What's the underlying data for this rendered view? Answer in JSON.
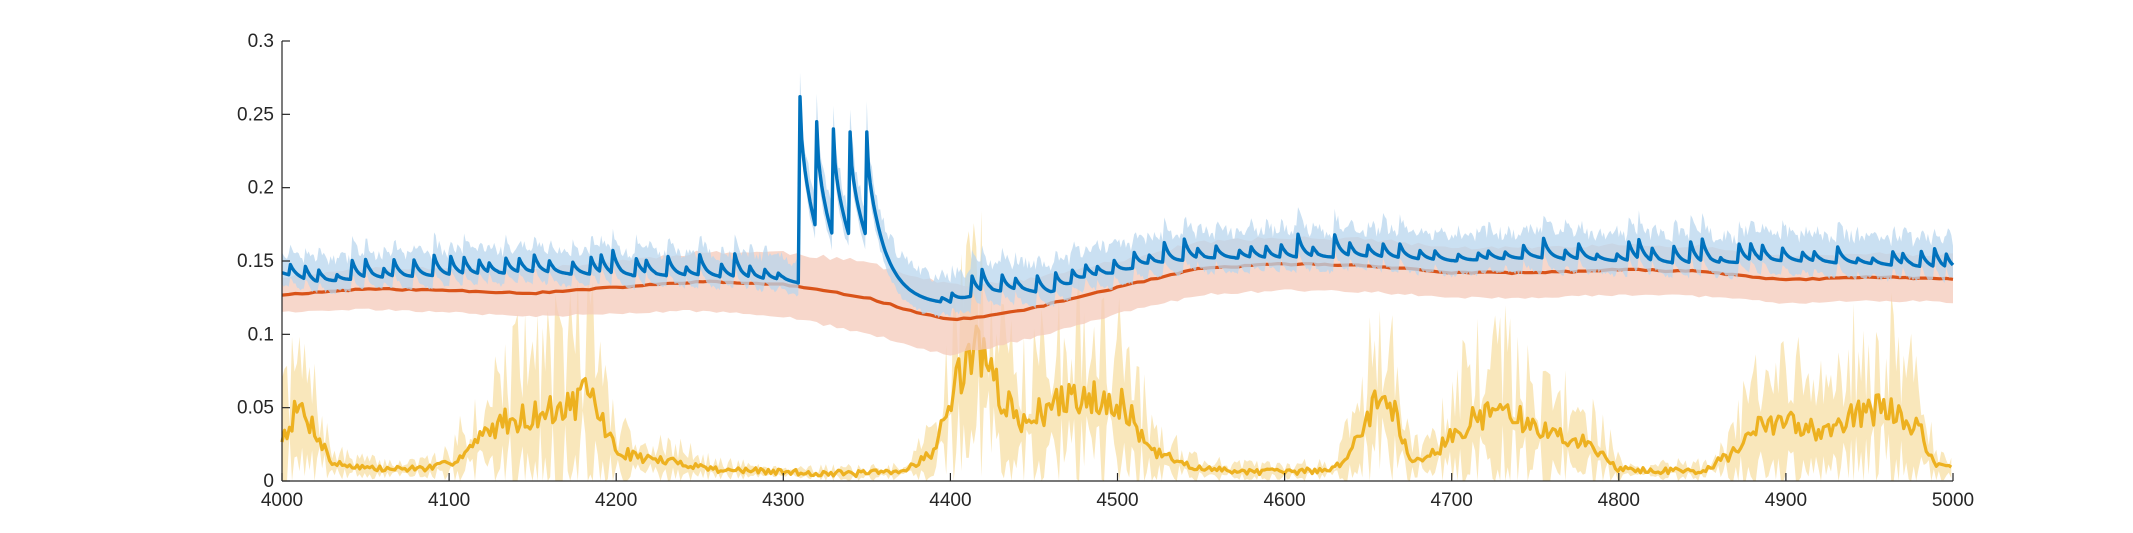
{
  "chart_data": {
    "type": "line",
    "title": "",
    "xlabel": "",
    "ylabel": "",
    "xlim": [
      4000,
      5000
    ],
    "ylim": [
      0,
      0.3
    ],
    "grid": false,
    "legend": "none",
    "xticks": [
      4000,
      4100,
      4200,
      4300,
      4400,
      4500,
      4600,
      4700,
      4800,
      4900,
      5000
    ],
    "xtick_labels": [
      "4000",
      "4100",
      "4200",
      "4300",
      "4400",
      "4500",
      "4600",
      "4700",
      "4800",
      "4900",
      "5000"
    ],
    "yticks": [
      0,
      0.05,
      0.1,
      0.15,
      0.2,
      0.25,
      0.3
    ],
    "ytick_labels": [
      "0",
      "0.05",
      "0.1",
      "0.15",
      "0.2",
      "0.25",
      "0.3"
    ],
    "series": [
      {
        "color": "#EDB120",
        "band_color": "#F7DFA4",
        "style": "mean-with-shaded-band",
        "x": [
          4000,
          4010,
          4020,
          4030,
          4060,
          4090,
          4100,
          4110,
          4130,
          4150,
          4170,
          4185,
          4190,
          4200,
          4220,
          4240,
          4260,
          4300,
          4340,
          4370,
          4390,
          4405,
          4415,
          4420,
          4430,
          4440,
          4460,
          4480,
          4500,
          4510,
          4520,
          4550,
          4600,
          4630,
          4645,
          4655,
          4665,
          4675,
          4690,
          4710,
          4730,
          4750,
          4770,
          4790,
          4800,
          4820,
          4850,
          4870,
          4880,
          4900,
          4920,
          4940,
          4960,
          4975,
          4980,
          4990,
          5000
        ],
        "mean": [
          0.03,
          0.05,
          0.035,
          0.012,
          0.008,
          0.009,
          0.012,
          0.02,
          0.04,
          0.045,
          0.05,
          0.06,
          0.045,
          0.02,
          0.015,
          0.012,
          0.008,
          0.006,
          0.005,
          0.006,
          0.02,
          0.07,
          0.1,
          0.08,
          0.06,
          0.04,
          0.05,
          0.06,
          0.055,
          0.04,
          0.02,
          0.008,
          0.006,
          0.008,
          0.03,
          0.06,
          0.05,
          0.015,
          0.02,
          0.04,
          0.05,
          0.035,
          0.03,
          0.02,
          0.008,
          0.007,
          0.007,
          0.02,
          0.035,
          0.04,
          0.035,
          0.045,
          0.05,
          0.04,
          0.035,
          0.01,
          0.008
        ],
        "band_halfwidth": [
          0.02,
          0.03,
          0.02,
          0.006,
          0.004,
          0.004,
          0.008,
          0.015,
          0.03,
          0.035,
          0.04,
          0.045,
          0.035,
          0.015,
          0.01,
          0.008,
          0.004,
          0.003,
          0.003,
          0.003,
          0.012,
          0.04,
          0.06,
          0.05,
          0.035,
          0.03,
          0.035,
          0.04,
          0.035,
          0.03,
          0.015,
          0.005,
          0.003,
          0.005,
          0.02,
          0.035,
          0.03,
          0.01,
          0.015,
          0.03,
          0.035,
          0.025,
          0.02,
          0.015,
          0.005,
          0.004,
          0.004,
          0.015,
          0.025,
          0.03,
          0.025,
          0.035,
          0.04,
          0.03,
          0.025,
          0.006,
          0.004
        ]
      },
      {
        "color": "#D95319",
        "band_color": "#F4C9BA",
        "style": "mean-with-shaded-band",
        "x": [
          4000,
          4050,
          4100,
          4150,
          4200,
          4250,
          4300,
          4350,
          4380,
          4400,
          4420,
          4450,
          4500,
          4550,
          4600,
          4650,
          4700,
          4750,
          4800,
          4850,
          4900,
          4950,
          5000
        ],
        "mean": [
          0.127,
          0.131,
          0.13,
          0.128,
          0.132,
          0.136,
          0.134,
          0.125,
          0.115,
          0.11,
          0.112,
          0.118,
          0.132,
          0.145,
          0.148,
          0.147,
          0.142,
          0.142,
          0.144,
          0.143,
          0.137,
          0.139,
          0.138
        ],
        "band_halfwidth": [
          0.012,
          0.014,
          0.015,
          0.016,
          0.018,
          0.02,
          0.022,
          0.024,
          0.025,
          0.024,
          0.022,
          0.02,
          0.018,
          0.018,
          0.018,
          0.018,
          0.017,
          0.017,
          0.017,
          0.017,
          0.016,
          0.016,
          0.016
        ]
      },
      {
        "color": "#0072BD",
        "band_color": "#B8D6EE",
        "style": "mean-with-shaded-band",
        "x": [
          4000,
          4020,
          4050,
          4100,
          4150,
          4200,
          4250,
          4280,
          4300,
          4309,
          4310,
          4320,
          4330,
          4340,
          4350,
          4360,
          4370,
          4380,
          4390,
          4400,
          4420,
          4440,
          4460,
          4480,
          4500,
          4520,
          4540,
          4560,
          4600,
          4650,
          4700,
          4750,
          4800,
          4850,
          4900,
          4950,
          4980,
          5000
        ],
        "mean": [
          0.142,
          0.135,
          0.138,
          0.14,
          0.142,
          0.14,
          0.14,
          0.138,
          0.137,
          0.135,
          0.262,
          0.245,
          0.24,
          0.238,
          0.238,
          0.18,
          0.155,
          0.14,
          0.128,
          0.122,
          0.128,
          0.13,
          0.128,
          0.138,
          0.142,
          0.148,
          0.15,
          0.152,
          0.152,
          0.153,
          0.15,
          0.152,
          0.15,
          0.148,
          0.15,
          0.148,
          0.146,
          0.144
        ],
        "band_halfwidth": [
          0.01,
          0.01,
          0.01,
          0.01,
          0.01,
          0.01,
          0.01,
          0.01,
          0.01,
          0.01,
          0.012,
          0.012,
          0.012,
          0.012,
          0.012,
          0.012,
          0.012,
          0.012,
          0.012,
          0.012,
          0.012,
          0.012,
          0.012,
          0.012,
          0.012,
          0.012,
          0.012,
          0.012,
          0.012,
          0.012,
          0.012,
          0.012,
          0.012,
          0.012,
          0.012,
          0.012,
          0.012,
          0.012
        ],
        "spikes": {
          "burst_times": [
            4310,
            4320,
            4330,
            4340,
            4350
          ],
          "burst_peaks": [
            0.262,
            0.245,
            0.24,
            0.238,
            0.238
          ],
          "burst_troughs": [
            0.17,
            0.165,
            0.165,
            0.165,
            0.16
          ]
        }
      }
    ]
  }
}
